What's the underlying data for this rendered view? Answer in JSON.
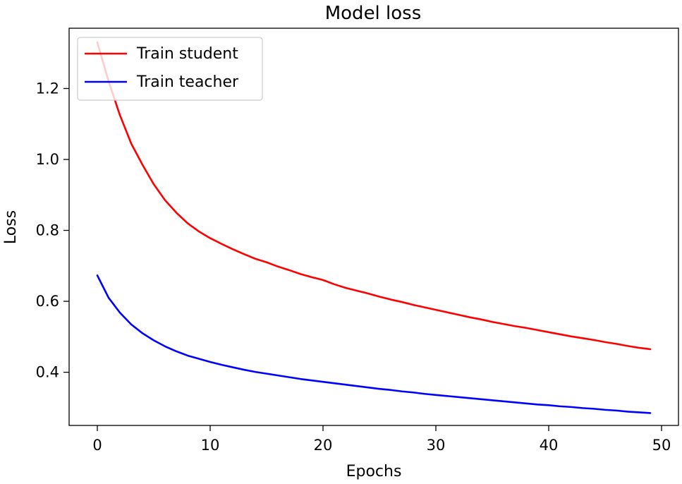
{
  "chart_data": {
    "type": "line",
    "title": "Model loss",
    "xlabel": "Epochs",
    "ylabel": "Loss",
    "xlim": [
      -2.5,
      51.5
    ],
    "ylim": [
      0.25,
      1.37
    ],
    "xticks": [
      0,
      10,
      20,
      30,
      40,
      50
    ],
    "yticks": [
      0.4,
      0.6,
      0.8,
      1.0,
      1.2
    ],
    "xtick_labels": [
      "0",
      "10",
      "20",
      "30",
      "40",
      "50"
    ],
    "ytick_labels": [
      "0.4",
      "0.6",
      "0.8",
      "1.0",
      "1.2"
    ],
    "grid": false,
    "legend_position": "top-left",
    "x": [
      0,
      1,
      2,
      3,
      4,
      5,
      6,
      7,
      8,
      9,
      10,
      11,
      12,
      13,
      14,
      15,
      16,
      17,
      18,
      19,
      20,
      21,
      22,
      23,
      24,
      25,
      26,
      27,
      28,
      29,
      30,
      31,
      32,
      33,
      34,
      35,
      36,
      37,
      38,
      39,
      40,
      41,
      42,
      43,
      44,
      45,
      46,
      47,
      48,
      49
    ],
    "series": [
      {
        "name": "Train student",
        "color": "#ff0000",
        "values": [
          1.33,
          1.22,
          1.125,
          1.045,
          0.985,
          0.93,
          0.885,
          0.85,
          0.82,
          0.797,
          0.778,
          0.762,
          0.747,
          0.733,
          0.72,
          0.71,
          0.698,
          0.688,
          0.677,
          0.668,
          0.66,
          0.648,
          0.638,
          0.63,
          0.622,
          0.613,
          0.605,
          0.598,
          0.59,
          0.583,
          0.576,
          0.569,
          0.562,
          0.555,
          0.549,
          0.542,
          0.536,
          0.53,
          0.525,
          0.519,
          0.513,
          0.507,
          0.501,
          0.496,
          0.491,
          0.485,
          0.48,
          0.474,
          0.469,
          0.465
        ]
      },
      {
        "name": "Train teacher",
        "color": "#0000ff",
        "values": [
          0.673,
          0.61,
          0.568,
          0.535,
          0.51,
          0.49,
          0.473,
          0.459,
          0.447,
          0.438,
          0.429,
          0.421,
          0.414,
          0.407,
          0.401,
          0.396,
          0.391,
          0.386,
          0.381,
          0.377,
          0.373,
          0.369,
          0.365,
          0.361,
          0.357,
          0.353,
          0.35,
          0.346,
          0.343,
          0.339,
          0.336,
          0.333,
          0.33,
          0.327,
          0.324,
          0.321,
          0.318,
          0.315,
          0.312,
          0.309,
          0.307,
          0.304,
          0.302,
          0.299,
          0.297,
          0.294,
          0.292,
          0.289,
          0.287,
          0.285
        ]
      }
    ]
  }
}
